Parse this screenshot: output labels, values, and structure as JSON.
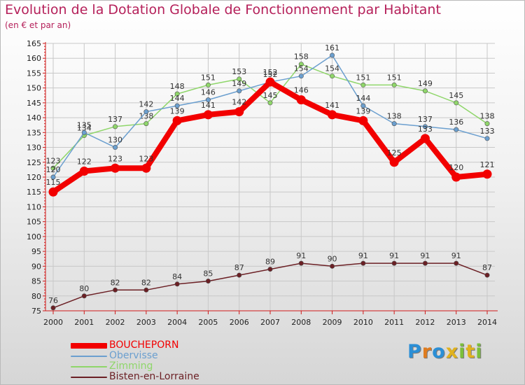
{
  "title": "Evolution de la Dotation Globale de Fonctionnement par Habitant",
  "subtitle": "(en € et par an)",
  "logo": {
    "letters": [
      "P",
      "r",
      "o",
      "x",
      "i",
      "t",
      "i"
    ],
    "colors": [
      "#2b8fd6",
      "#e07c1e",
      "#2b8fd6",
      "#e0b21e",
      "#7bbf3a",
      "#e0b21e",
      "#7bbf3a"
    ]
  },
  "colors": {
    "title": "#b5205a",
    "axis": "#d01a1a"
  },
  "chart_data": {
    "type": "line",
    "title": "Evolution de la Dotation Globale de Fonctionnement par Habitant",
    "subtitle": "(en € et par an)",
    "x": [
      "2000",
      "2001",
      "2002",
      "2003",
      "2004",
      "2005",
      "2006",
      "2007",
      "2008",
      "2009",
      "2010",
      "2011",
      "2012",
      "2013",
      "2014"
    ],
    "ylim": [
      75,
      165
    ],
    "yticks": [
      75,
      80,
      85,
      90,
      95,
      100,
      105,
      110,
      115,
      120,
      125,
      130,
      135,
      140,
      145,
      150,
      155,
      160,
      165
    ],
    "grid": true,
    "legend": "bottom-left",
    "series": [
      {
        "name": "Bisten-en-Lorraine",
        "color": "#6b1f24",
        "values": [
          76,
          80,
          82,
          82,
          84,
          85,
          87,
          89,
          91,
          90,
          91,
          91,
          91,
          91,
          87
        ]
      },
      {
        "name": "Zimming",
        "color": "#8fd66a",
        "values": [
          123,
          134,
          137,
          138,
          148,
          151,
          153,
          145,
          158,
          154,
          151,
          151,
          149,
          145,
          138
        ]
      },
      {
        "name": "Obervisse",
        "color": "#6b9fcf",
        "values": [
          120,
          135,
          130,
          142,
          144,
          146,
          149,
          152,
          154,
          161,
          144,
          138,
          137,
          136,
          133
        ]
      },
      {
        "name": "BOUCHEPORN",
        "color": "#f20000",
        "values": [
          115,
          122,
          123,
          123,
          139,
          141,
          142,
          152,
          146,
          141,
          139,
          125,
          133,
          120,
          121
        ]
      }
    ]
  }
}
